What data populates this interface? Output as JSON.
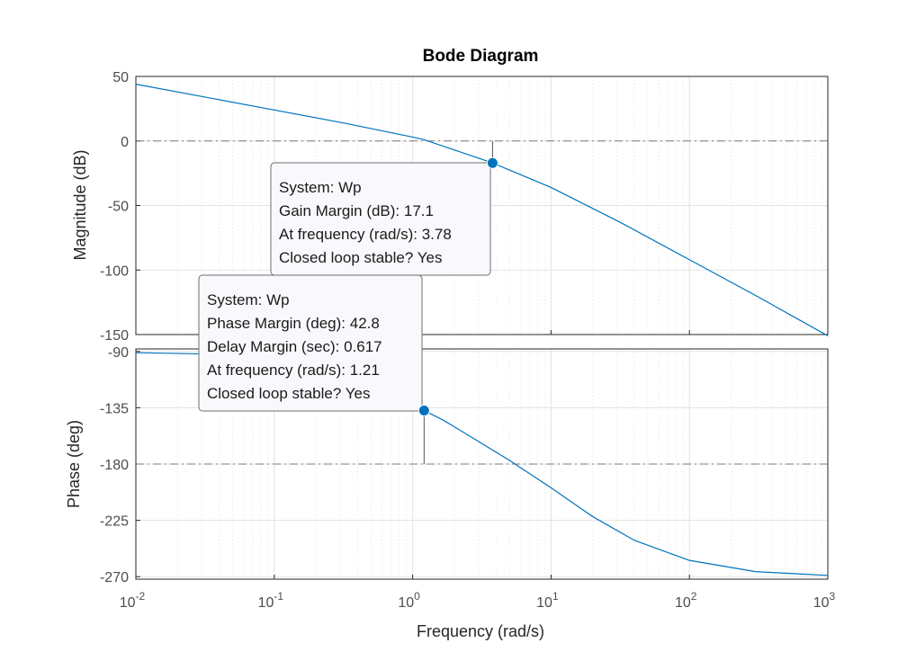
{
  "chart_data": {
    "type": "line",
    "title": "Bode Diagram",
    "xlabel": "Frequency  (rad/s)",
    "x_scale": "log",
    "xlim": [
      0.01,
      1000
    ],
    "x_ticks": [
      {
        "value": 0.01,
        "base": "10",
        "exp": "-2"
      },
      {
        "value": 0.1,
        "base": "10",
        "exp": "-1"
      },
      {
        "value": 1,
        "base": "10",
        "exp": "0"
      },
      {
        "value": 10,
        "base": "10",
        "exp": "1"
      },
      {
        "value": 100,
        "base": "10",
        "exp": "2"
      },
      {
        "value": 1000,
        "base": "10",
        "exp": "3"
      }
    ],
    "grid": true,
    "line_color": "#0072bd",
    "marker_color": "#0072bd",
    "panels": [
      {
        "name": "magnitude",
        "ylabel": "Magnitude (dB)",
        "ylim": [
          -150,
          50
        ],
        "y_ticks": [
          50,
          0,
          -50,
          -100,
          -150
        ],
        "reference_line": 0,
        "series": {
          "x": [
            0.01,
            0.0316,
            0.1,
            0.316,
            1,
            1.21,
            3.78,
            10,
            31.6,
            100,
            316,
            1000
          ],
          "y": [
            44,
            34,
            24,
            14,
            3,
            1,
            -17,
            -36,
            -63,
            -92,
            -121,
            -151
          ]
        }
      },
      {
        "name": "phase",
        "ylabel": "Phase (deg)",
        "ylim": [
          -272,
          -88
        ],
        "y_ticks": [
          -90,
          -135,
          -180,
          -225,
          -270
        ],
        "reference_line": -180,
        "series": {
          "x": [
            0.01,
            0.0316,
            0.1,
            0.316,
            1,
            1.21,
            1.67,
            3,
            5,
            10,
            20,
            40,
            100,
            300,
            1000
          ],
          "y": [
            -91,
            -92,
            -96,
            -108,
            -132,
            -137.2,
            -145,
            -162,
            -177,
            -199,
            -222,
            -241,
            -257,
            -266,
            -269
          ]
        }
      }
    ],
    "annotations": [
      {
        "panel": "magnitude",
        "x": 3.78,
        "y": -17.1,
        "line_to": 0,
        "lines": [
          "System: Wp",
          "Gain Margin (dB): 17.1",
          "At frequency (rad/s): 3.78",
          "Closed loop stable? Yes"
        ]
      },
      {
        "panel": "phase",
        "x": 1.21,
        "y": -137.2,
        "line_to": -180,
        "lines": [
          "System: Wp",
          "Phase Margin (deg): 42.8",
          "Delay Margin (sec): 0.617",
          "At frequency (rad/s): 1.21",
          "Closed loop stable? Yes"
        ]
      }
    ]
  }
}
